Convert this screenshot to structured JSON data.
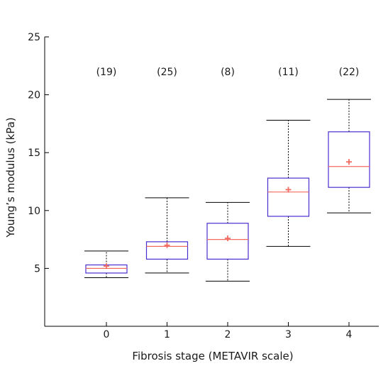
{
  "chart_data": {
    "type": "box",
    "title": "",
    "xlabel": "Fibrosis stage (METAVIR scale)",
    "ylabel": "Young’s modulus (kPa)",
    "ylim": [
      0,
      25
    ],
    "yticks": [
      5,
      10,
      15,
      20,
      25
    ],
    "grid": false,
    "colors": {
      "box": "#4b2ccf",
      "median": "#f26b60",
      "mean_marker": "#f26b60",
      "whisker": "#000000",
      "axis": "#000000"
    },
    "categories": [
      "0",
      "1",
      "2",
      "3",
      "4"
    ],
    "counts": [
      "(19)",
      "(25)",
      "(8)",
      "(11)",
      "(22)"
    ],
    "boxes": [
      {
        "category": "0",
        "whisker_low": 4.2,
        "q1": 4.6,
        "median": 5.0,
        "q3": 5.3,
        "whisker_high": 6.5,
        "mean": 5.2
      },
      {
        "category": "1",
        "whisker_low": 4.6,
        "q1": 5.8,
        "median": 6.9,
        "q3": 7.3,
        "whisker_high": 11.1,
        "mean": 7.0
      },
      {
        "category": "2",
        "whisker_low": 3.9,
        "q1": 5.8,
        "median": 7.5,
        "q3": 8.9,
        "whisker_high": 10.7,
        "mean": 7.6
      },
      {
        "category": "3",
        "whisker_low": 6.9,
        "q1": 9.5,
        "median": 11.6,
        "q3": 12.8,
        "whisker_high": 17.8,
        "mean": 11.8
      },
      {
        "category": "4",
        "whisker_low": 9.8,
        "q1": 12.0,
        "median": 13.8,
        "q3": 16.8,
        "whisker_high": 19.6,
        "mean": 14.2
      }
    ]
  }
}
